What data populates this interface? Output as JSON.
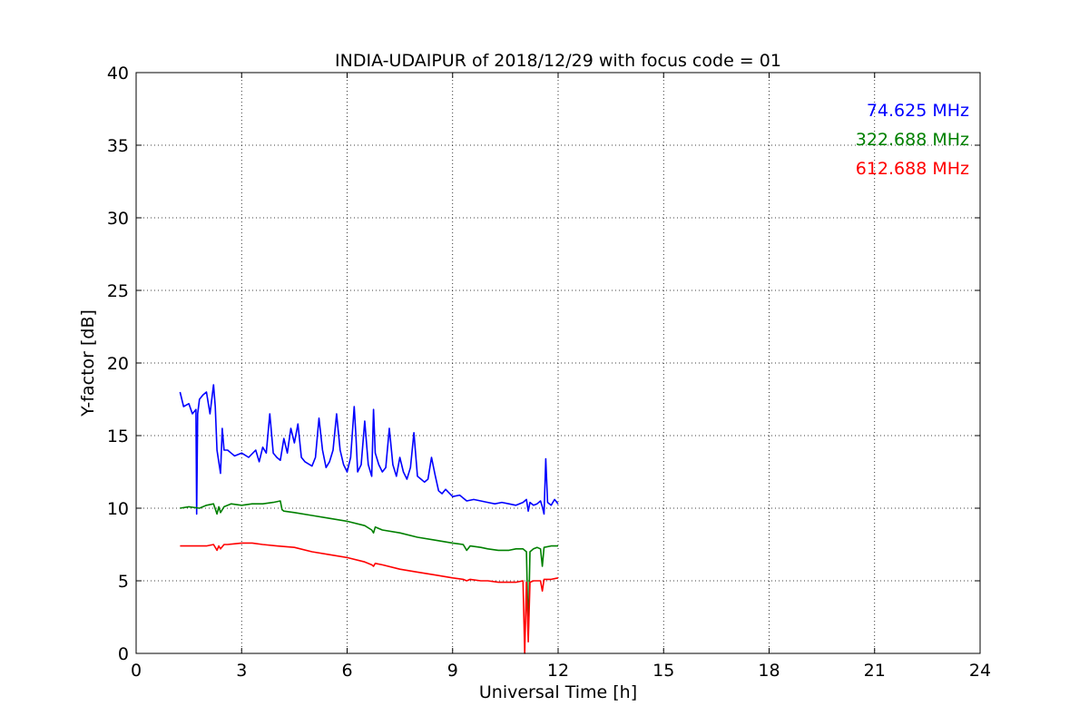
{
  "chart_data": {
    "type": "line",
    "title": "INDIA-UDAIPUR of 2018/12/29 with focus code = 01",
    "xlabel": "Universal Time [h]",
    "ylabel": "Y-factor [dB]",
    "xlim": [
      0,
      24
    ],
    "ylim": [
      0,
      40
    ],
    "xticks": [
      0,
      3,
      6,
      9,
      12,
      15,
      18,
      21,
      24
    ],
    "yticks": [
      0,
      5,
      10,
      15,
      20,
      25,
      30,
      35,
      40
    ],
    "grid": true,
    "legend_position": "top-right",
    "series": [
      {
        "name": "74.625 MHz",
        "color": "#0000ff",
        "x": [
          1.25,
          1.35,
          1.5,
          1.6,
          1.7,
          1.72,
          1.75,
          1.8,
          1.9,
          2.0,
          2.1,
          2.2,
          2.25,
          2.3,
          2.4,
          2.45,
          2.5,
          2.6,
          2.7,
          2.8,
          3.0,
          3.2,
          3.4,
          3.5,
          3.6,
          3.7,
          3.8,
          3.9,
          4.0,
          4.1,
          4.2,
          4.3,
          4.4,
          4.5,
          4.6,
          4.7,
          4.8,
          5.0,
          5.1,
          5.2,
          5.3,
          5.4,
          5.5,
          5.6,
          5.7,
          5.8,
          5.9,
          6.0,
          6.1,
          6.2,
          6.25,
          6.3,
          6.4,
          6.5,
          6.6,
          6.7,
          6.75,
          6.8,
          6.9,
          7.0,
          7.1,
          7.2,
          7.3,
          7.4,
          7.5,
          7.6,
          7.7,
          7.8,
          7.9,
          8.0,
          8.1,
          8.2,
          8.3,
          8.4,
          8.5,
          8.6,
          8.7,
          8.8,
          9.0,
          9.2,
          9.4,
          9.6,
          9.8,
          10.0,
          10.2,
          10.4,
          10.6,
          10.8,
          11.0,
          11.1,
          11.15,
          11.2,
          11.3,
          11.4,
          11.5,
          11.55,
          11.6,
          11.65,
          11.7,
          11.8,
          11.9,
          12.0
        ],
        "y": [
          18.0,
          17.0,
          17.2,
          16.5,
          16.8,
          9.6,
          16.5,
          17.5,
          17.8,
          18.0,
          16.5,
          18.5,
          17.0,
          14.0,
          12.4,
          15.5,
          14.0,
          14.0,
          13.8,
          13.6,
          13.8,
          13.5,
          14.0,
          13.2,
          14.2,
          13.8,
          16.5,
          13.8,
          13.5,
          13.3,
          14.8,
          13.8,
          15.5,
          14.5,
          15.8,
          13.5,
          13.2,
          12.9,
          13.5,
          16.2,
          14.0,
          12.8,
          13.2,
          14.0,
          16.5,
          14.0,
          13.0,
          12.5,
          13.5,
          17.0,
          15.0,
          12.5,
          13.0,
          16.0,
          13.0,
          12.2,
          16.8,
          13.8,
          13.0,
          12.5,
          12.8,
          15.5,
          13.0,
          12.2,
          13.5,
          12.5,
          12.0,
          12.8,
          15.2,
          12.2,
          12.0,
          11.8,
          12.0,
          13.5,
          12.3,
          11.2,
          11.0,
          11.3,
          10.8,
          10.9,
          10.5,
          10.6,
          10.5,
          10.4,
          10.3,
          10.4,
          10.3,
          10.2,
          10.4,
          10.6,
          9.8,
          10.4,
          10.2,
          10.3,
          10.5,
          10.1,
          9.6,
          13.4,
          10.4,
          10.2,
          10.6,
          10.3
        ]
      },
      {
        "name": "322.688 MHz",
        "color": "#008000",
        "x": [
          1.25,
          1.5,
          1.8,
          2.0,
          2.2,
          2.3,
          2.35,
          2.4,
          2.5,
          2.7,
          3.0,
          3.3,
          3.6,
          3.9,
          4.1,
          4.15,
          4.2,
          4.5,
          5.0,
          5.5,
          6.0,
          6.5,
          6.7,
          6.75,
          6.8,
          7.0,
          7.5,
          8.0,
          8.5,
          9.0,
          9.3,
          9.4,
          9.5,
          9.8,
          10.0,
          10.3,
          10.6,
          10.8,
          11.0,
          11.1,
          11.15,
          11.2,
          11.3,
          11.4,
          11.5,
          11.55,
          11.6,
          11.8,
          12.0
        ],
        "y": [
          10.0,
          10.1,
          10.0,
          10.2,
          10.3,
          9.6,
          10.1,
          9.7,
          10.1,
          10.3,
          10.2,
          10.3,
          10.3,
          10.4,
          10.5,
          9.9,
          9.8,
          9.7,
          9.5,
          9.3,
          9.1,
          8.8,
          8.5,
          8.3,
          8.7,
          8.5,
          8.3,
          8.0,
          7.8,
          7.6,
          7.5,
          7.1,
          7.4,
          7.3,
          7.2,
          7.1,
          7.1,
          7.2,
          7.2,
          7.0,
          1.3,
          7.0,
          7.2,
          7.3,
          7.2,
          6.0,
          7.3,
          7.4,
          7.4
        ]
      },
      {
        "name": "612.688 MHz",
        "color": "#ff0000",
        "x": [
          1.25,
          1.5,
          1.8,
          2.0,
          2.2,
          2.3,
          2.35,
          2.4,
          2.5,
          2.6,
          3.0,
          3.3,
          3.6,
          4.0,
          4.5,
          5.0,
          5.5,
          6.0,
          6.5,
          6.7,
          6.75,
          6.8,
          7.0,
          7.5,
          8.0,
          8.5,
          9.0,
          9.3,
          9.4,
          9.5,
          9.8,
          10.0,
          10.3,
          10.6,
          10.8,
          11.0,
          11.05,
          11.1,
          11.15,
          11.2,
          11.3,
          11.4,
          11.5,
          11.55,
          11.6,
          11.8,
          12.0
        ],
        "y": [
          7.4,
          7.4,
          7.4,
          7.4,
          7.5,
          7.1,
          7.4,
          7.2,
          7.5,
          7.5,
          7.6,
          7.6,
          7.5,
          7.4,
          7.3,
          7.0,
          6.8,
          6.6,
          6.3,
          6.1,
          6.0,
          6.2,
          6.1,
          5.8,
          5.6,
          5.4,
          5.2,
          5.1,
          5.0,
          5.1,
          5.0,
          5.0,
          4.9,
          4.9,
          4.9,
          5.0,
          0.0,
          4.9,
          0.8,
          4.9,
          5.0,
          5.0,
          5.0,
          4.3,
          5.1,
          5.1,
          5.2
        ]
      }
    ]
  }
}
